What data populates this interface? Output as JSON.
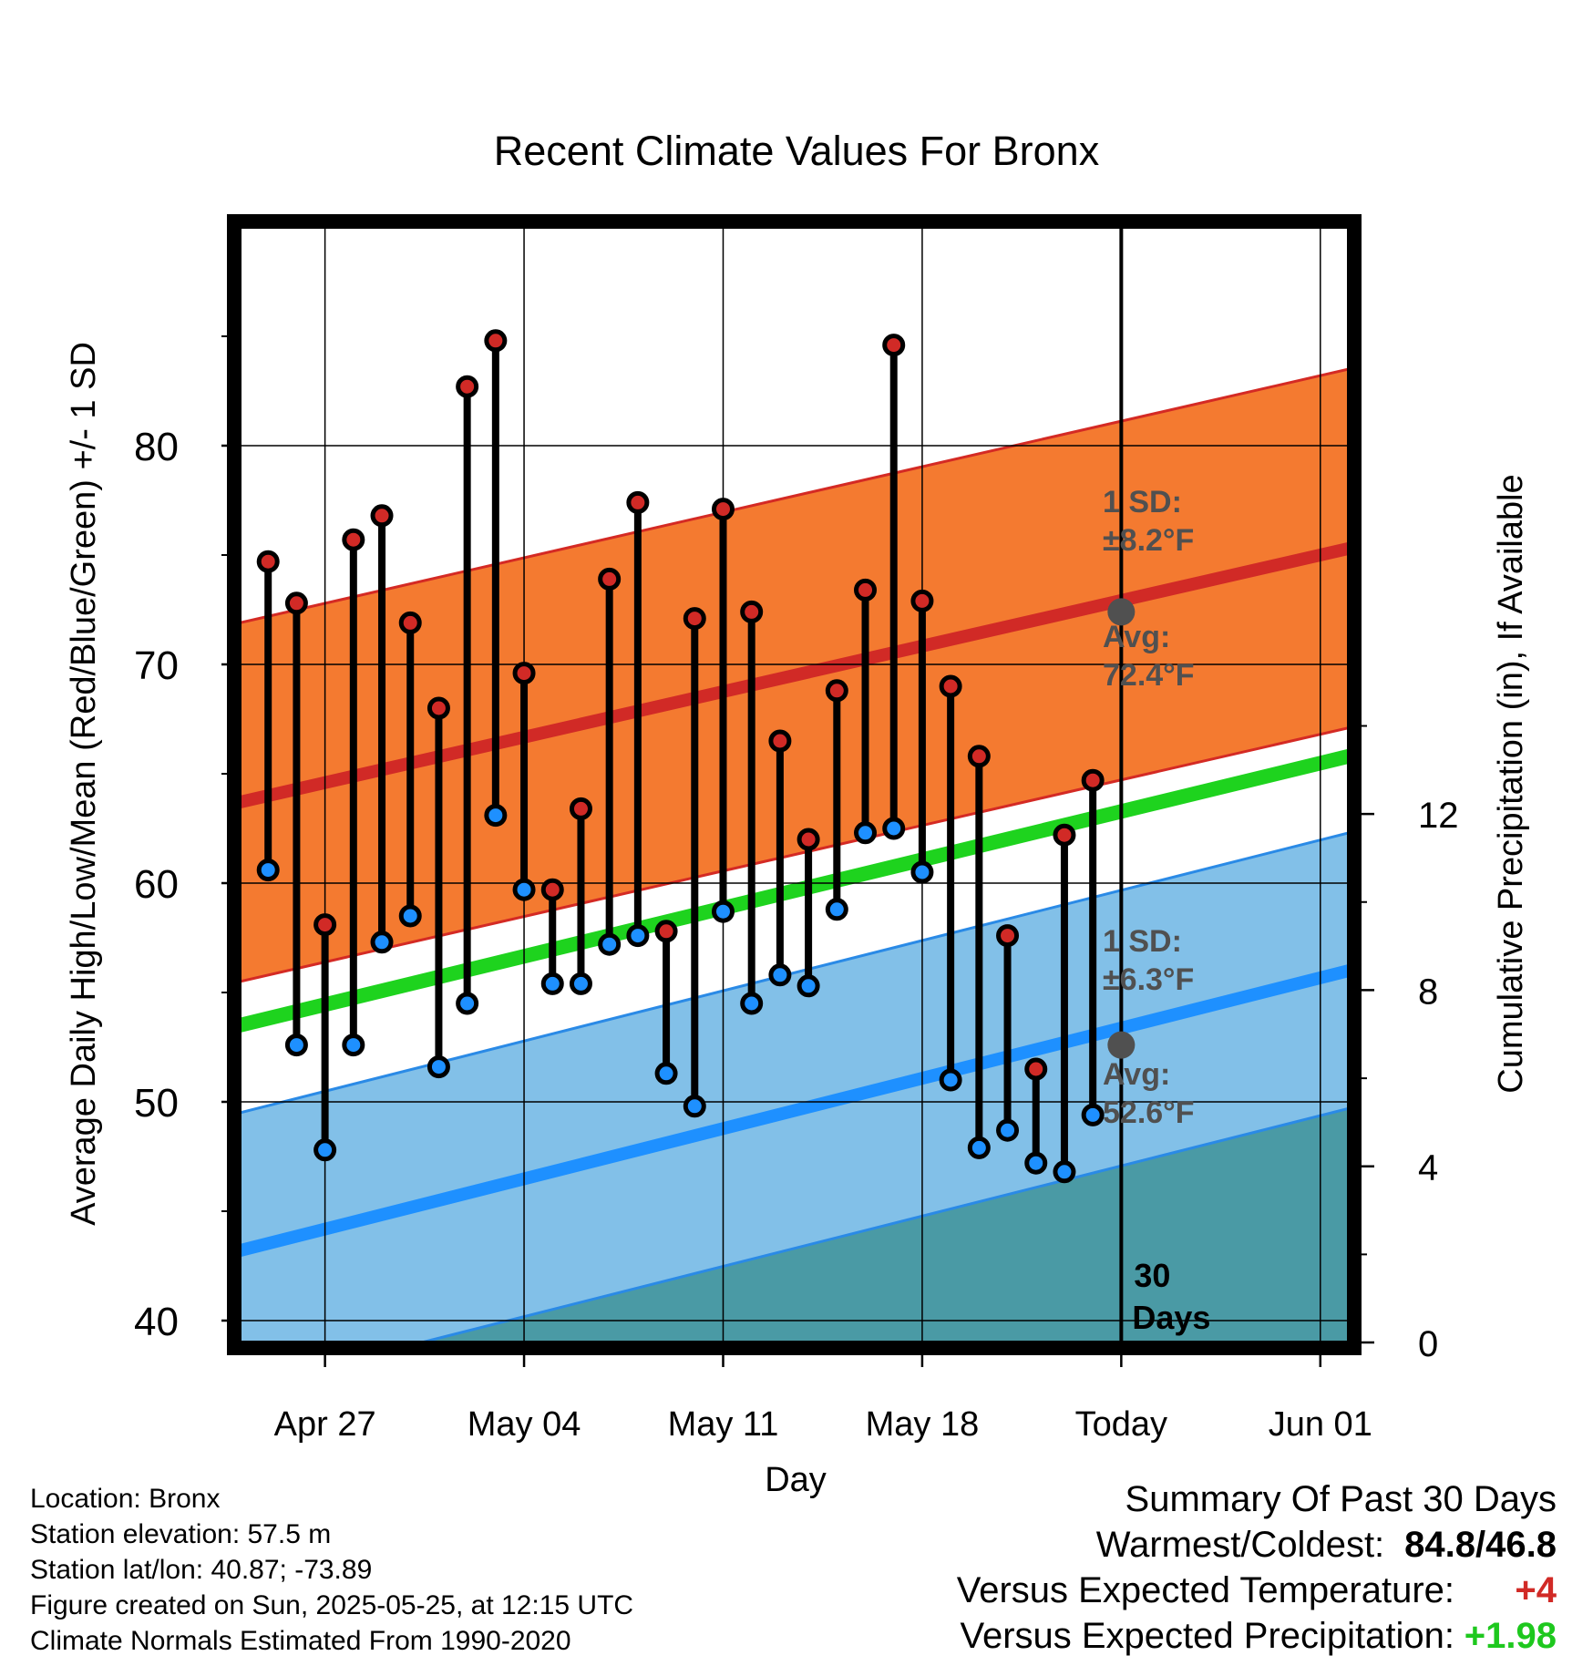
{
  "chart_data": {
    "type": "line",
    "title": "Recent Climate Values For Bronx",
    "xlabel": "Day",
    "ylabel_left": "Average Daily High/Low/Mean (Red/Blue/Green) +/- 1 SD",
    "ylabel_right": "Cumulative Precipitation (in), If Available",
    "y_left_range": [
      39,
      90
    ],
    "y_right_range": [
      0,
      25.33
    ],
    "y_left_ticks": [
      40,
      50,
      60,
      70,
      80
    ],
    "y_right_ticks": [
      0,
      4,
      8,
      12
    ],
    "x_range": [
      "2025-04-24",
      "2025-06-02"
    ],
    "x_ticks": [
      {
        "date": "2025-04-27",
        "label": "Apr 27"
      },
      {
        "date": "2025-05-04",
        "label": "May 04"
      },
      {
        "date": "2025-05-11",
        "label": "May 11"
      },
      {
        "date": "2025-05-18",
        "label": "May 18"
      },
      {
        "date": "2025-05-25",
        "label": "Today"
      },
      {
        "date": "2025-06-01",
        "label": "Jun 01"
      }
    ],
    "grid": true,
    "today": "2025-05-25",
    "today_label": [
      "30",
      "Days"
    ],
    "daily": [
      {
        "date": "2025-04-25",
        "high": 74.7,
        "low": 60.6
      },
      {
        "date": "2025-04-26",
        "high": 72.8,
        "low": 52.6
      },
      {
        "date": "2025-04-27",
        "high": 58.1,
        "low": 47.8
      },
      {
        "date": "2025-04-28",
        "high": 75.7,
        "low": 52.6
      },
      {
        "date": "2025-04-29",
        "high": 76.8,
        "low": 57.3
      },
      {
        "date": "2025-04-30",
        "high": 71.9,
        "low": 58.5
      },
      {
        "date": "2025-05-01",
        "high": 68.0,
        "low": 51.6
      },
      {
        "date": "2025-05-02",
        "high": 82.7,
        "low": 54.5
      },
      {
        "date": "2025-05-03",
        "high": 84.8,
        "low": 63.1
      },
      {
        "date": "2025-05-04",
        "high": 69.6,
        "low": 59.7
      },
      {
        "date": "2025-05-05",
        "high": 59.7,
        "low": 55.4
      },
      {
        "date": "2025-05-06",
        "high": 63.4,
        "low": 55.4
      },
      {
        "date": "2025-05-07",
        "high": 73.9,
        "low": 57.2
      },
      {
        "date": "2025-05-08",
        "high": 77.4,
        "low": 57.6
      },
      {
        "date": "2025-05-09",
        "high": 57.8,
        "low": 51.3
      },
      {
        "date": "2025-05-10",
        "high": 72.1,
        "low": 49.8
      },
      {
        "date": "2025-05-11",
        "high": 77.1,
        "low": 58.7
      },
      {
        "date": "2025-05-12",
        "high": 72.4,
        "low": 54.5
      },
      {
        "date": "2025-05-13",
        "high": 66.5,
        "low": 55.8
      },
      {
        "date": "2025-05-14",
        "high": 62.0,
        "low": 55.3
      },
      {
        "date": "2025-05-15",
        "high": 68.8,
        "low": 58.8
      },
      {
        "date": "2025-05-16",
        "high": 73.4,
        "low": 62.3
      },
      {
        "date": "2025-05-17",
        "high": 84.6,
        "low": 62.5
      },
      {
        "date": "2025-05-18",
        "high": 72.9,
        "low": 60.5
      },
      {
        "date": "2025-05-19",
        "high": 69.0,
        "low": 51.0
      },
      {
        "date": "2025-05-20",
        "high": 65.8,
        "low": 47.9
      },
      {
        "date": "2025-05-21",
        "high": 57.6,
        "low": 48.7
      },
      {
        "date": "2025-05-22",
        "high": 51.5,
        "low": 47.2
      },
      {
        "date": "2025-05-23",
        "high": 62.2,
        "low": 46.8
      },
      {
        "date": "2025-05-24",
        "high": 64.7,
        "low": 49.4
      }
    ],
    "normal_high": {
      "start": 63.7,
      "end": 75.3,
      "sd": 8.2,
      "today_value": 72.4
    },
    "normal_low": {
      "start": 43.2,
      "end": 56.0,
      "sd": 6.3,
      "today_value": 52.6
    },
    "normal_mean": {
      "start": 53.5,
      "end": 65.8
    },
    "precip_cumulative": [
      {
        "date": "2025-04-24",
        "value": 0.0
      },
      {
        "date": "2025-04-25",
        "value": 0.0
      },
      {
        "date": "2025-04-26",
        "value": 0.25
      },
      {
        "date": "2025-04-27",
        "value": 0.25
      },
      {
        "date": "2025-04-28",
        "value": 0.25
      },
      {
        "date": "2025-04-29",
        "value": 0.25
      },
      {
        "date": "2025-04-30",
        "value": 0.25
      },
      {
        "date": "2025-05-01",
        "value": 0.25
      },
      {
        "date": "2025-05-02",
        "value": 0.25
      },
      {
        "date": "2025-05-03",
        "value": 0.9
      },
      {
        "date": "2025-05-04",
        "value": 1.05
      },
      {
        "date": "2025-05-05",
        "value": 2.3
      },
      {
        "date": "2025-05-06",
        "value": 2.6
      },
      {
        "date": "2025-05-07",
        "value": 2.6
      },
      {
        "date": "2025-05-08",
        "value": 2.62
      },
      {
        "date": "2025-05-09",
        "value": 3.25
      },
      {
        "date": "2025-05-10",
        "value": 3.25
      },
      {
        "date": "2025-05-11",
        "value": 3.25
      },
      {
        "date": "2025-05-12",
        "value": 3.25
      },
      {
        "date": "2025-05-13",
        "value": 3.5
      },
      {
        "date": "2025-05-14",
        "value": 4.5
      },
      {
        "date": "2025-05-15",
        "value": 4.5
      },
      {
        "date": "2025-05-16",
        "value": 4.52
      },
      {
        "date": "2025-05-17",
        "value": 4.52
      },
      {
        "date": "2025-05-18",
        "value": 4.52
      },
      {
        "date": "2025-05-19",
        "value": 4.52
      },
      {
        "date": "2025-05-20",
        "value": 4.52
      },
      {
        "date": "2025-05-21",
        "value": 4.52
      },
      {
        "date": "2025-05-22",
        "value": 5.5
      },
      {
        "date": "2025-05-23",
        "value": 5.6
      },
      {
        "date": "2025-05-24",
        "value": 5.6
      },
      {
        "date": "2025-06-02",
        "value": 5.6
      }
    ],
    "annotations": {
      "high_sd": [
        "1 SD:",
        "±8.2°F"
      ],
      "high_avg": [
        "Avg:",
        "72.4°F"
      ],
      "low_sd": [
        "1 SD:",
        "±6.3°F"
      ],
      "low_avg": [
        "Avg:",
        "52.6°F"
      ]
    },
    "colors": {
      "high_band": "#f47a30",
      "high_band_edge": "#d42a24",
      "high_line": "#d12a26",
      "low_band": "#82c0e8",
      "low_band_edge": "#2a8ae6",
      "low_line": "#1e90ff",
      "mean_line": "#1ed31e",
      "precip": "#4a9aa5",
      "high_dot": "#d12a26",
      "low_dot": "#1e90ff",
      "avg_marker": "#505050",
      "annotation": "#505050"
    }
  },
  "info": {
    "location": "Location: Bronx",
    "elevation": "Station elevation: 57.5 m",
    "latlon": "Station lat/lon: 40.87; -73.89",
    "created": "Figure created on Sun, 2025-05-25, at 12:15 UTC",
    "normals": "Climate Normals Estimated From 1990-2020"
  },
  "summary": {
    "title": "Summary Of Past 30 Days",
    "warm_cold_label": "Warmest/Coldest:",
    "warm_cold_value": "84.8/46.8",
    "temp_label": "Versus Expected Temperature:",
    "temp_value": "+4",
    "temp_color": "#d12a26",
    "precip_label": "Versus Expected Precipitation:",
    "precip_value": "+1.98",
    "precip_color": "#1ec81e"
  }
}
